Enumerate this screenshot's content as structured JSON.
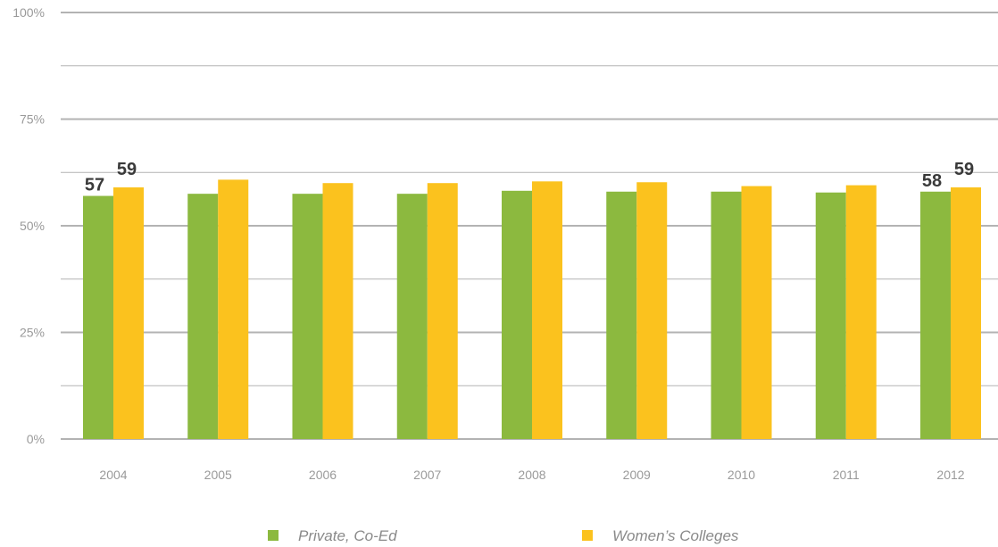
{
  "chart_data": {
    "type": "bar",
    "categories": [
      "2004",
      "2005",
      "2006",
      "2007",
      "2008",
      "2009",
      "2010",
      "2011",
      "2012"
    ],
    "series": [
      {
        "name": "Private, Co-Ed",
        "color": "#8cb93f",
        "values": [
          57,
          57.5,
          57.5,
          57.5,
          58.2,
          58,
          58,
          57.8,
          58
        ]
      },
      {
        "name": "Women’s Colleges",
        "color": "#fbc21e",
        "values": [
          59,
          60.8,
          60,
          60,
          60.4,
          60.2,
          59.3,
          59.5,
          59
        ]
      }
    ],
    "data_labels": [
      {
        "series": 0,
        "category": "2004",
        "text": "57"
      },
      {
        "series": 1,
        "category": "2004",
        "text": "59"
      },
      {
        "series": 0,
        "category": "2012",
        "text": "58"
      },
      {
        "series": 1,
        "category": "2012",
        "text": "59"
      }
    ],
    "ylim": [
      0,
      100
    ],
    "yticks": [
      0,
      25,
      50,
      75,
      100
    ],
    "ytick_labels": [
      "0%",
      "25%",
      "50%",
      "75%",
      "100%"
    ],
    "minor_gridlines": [
      12.5,
      37.5,
      62.5,
      87.5
    ],
    "grid": true,
    "gridline_color": "#b3b3b3",
    "legend_position": "bottom"
  }
}
